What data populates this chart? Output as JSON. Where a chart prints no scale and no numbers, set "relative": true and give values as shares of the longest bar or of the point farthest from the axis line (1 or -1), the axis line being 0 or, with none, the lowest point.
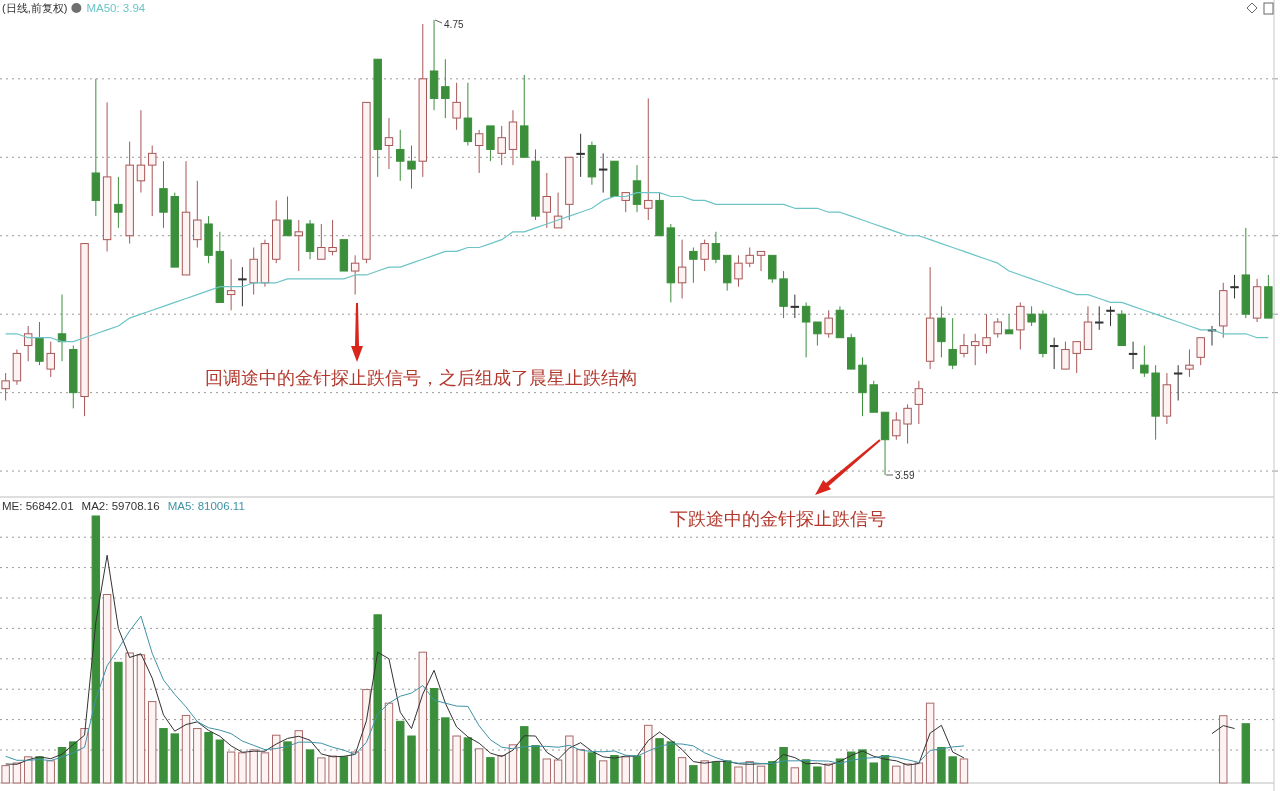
{
  "chart_data": [
    {
      "type": "candlestick",
      "categories": [
        null,
        null,
        null,
        null,
        null,
        null,
        null,
        null,
        null,
        null,
        null,
        null,
        null,
        null,
        null,
        null,
        null,
        null,
        null,
        null,
        null,
        null,
        null,
        null,
        null,
        null,
        null,
        null,
        null,
        null,
        null,
        null,
        null,
        null,
        null,
        null,
        null,
        null,
        null,
        null,
        null,
        null,
        null,
        null,
        null,
        null,
        null,
        null,
        null,
        null,
        null,
        null,
        null,
        null,
        null,
        null,
        null,
        null,
        null,
        null,
        null,
        null,
        null,
        null,
        null,
        null,
        null,
        null,
        null,
        null,
        null,
        null,
        null,
        null,
        null,
        null,
        null,
        null,
        null,
        null,
        null,
        null,
        null,
        null,
        null,
        null,
        null,
        null,
        null,
        null,
        null,
        null,
        null,
        null,
        null,
        null,
        null,
        null,
        null,
        null,
        null,
        null,
        null,
        null,
        null,
        null,
        null,
        null,
        null,
        null,
        null,
        null,
        null
      ],
      "ohlc": [
        [
          3.81,
          3.85,
          3.78,
          3.83
        ],
        [
          3.83,
          3.91,
          3.82,
          3.9
        ],
        [
          3.92,
          3.97,
          3.88,
          3.95
        ],
        [
          3.94,
          3.98,
          3.87,
          3.88
        ],
        [
          3.86,
          3.93,
          3.84,
          3.9
        ],
        [
          3.95,
          4.05,
          3.88,
          3.93
        ],
        [
          3.91,
          3.92,
          3.76,
          3.8
        ],
        [
          3.79,
          4.18,
          3.74,
          4.18
        ],
        [
          4.36,
          4.6,
          4.25,
          4.29
        ],
        [
          4.19,
          4.54,
          4.16,
          4.35
        ],
        [
          4.28,
          4.35,
          4.22,
          4.26
        ],
        [
          4.2,
          4.44,
          4.18,
          4.38
        ],
        [
          4.34,
          4.52,
          4.31,
          4.38
        ],
        [
          4.38,
          4.43,
          4.25,
          4.41
        ],
        [
          4.32,
          4.39,
          4.22,
          4.26
        ],
        [
          4.3,
          4.31,
          4.12,
          4.12
        ],
        [
          4.1,
          4.39,
          4.1,
          4.26
        ],
        [
          4.19,
          4.34,
          4.17,
          4.24
        ],
        [
          4.23,
          4.25,
          4.13,
          4.15
        ],
        [
          4.16,
          4.21,
          4.03,
          4.03
        ],
        [
          4.05,
          4.14,
          4.01,
          4.06
        ],
        [
          4.09,
          4.12,
          4.02,
          4.09
        ],
        [
          4.08,
          4.17,
          4.05,
          4.14
        ],
        [
          4.08,
          4.19,
          4.07,
          4.18
        ],
        [
          4.14,
          4.29,
          4.13,
          4.24
        ],
        [
          4.24,
          4.3,
          4.2,
          4.2
        ],
        [
          4.2,
          4.24,
          4.11,
          4.21
        ],
        [
          4.23,
          4.24,
          4.14,
          4.16
        ],
        [
          4.14,
          4.23,
          4.14,
          4.17
        ],
        [
          4.16,
          4.24,
          4.15,
          4.17
        ],
        [
          4.19,
          4.19,
          4.11,
          4.11
        ],
        [
          4.11,
          4.15,
          4.05,
          4.13
        ],
        [
          4.14,
          4.54,
          4.13,
          4.54
        ],
        [
          4.65,
          4.65,
          4.35,
          4.42
        ],
        [
          4.43,
          4.5,
          4.37,
          4.45
        ],
        [
          4.42,
          4.47,
          4.34,
          4.39
        ],
        [
          4.39,
          4.43,
          4.32,
          4.37
        ],
        [
          4.39,
          4.74,
          4.35,
          4.6
        ],
        [
          4.62,
          4.75,
          4.52,
          4.55
        ],
        [
          4.58,
          4.65,
          4.5,
          4.55
        ],
        [
          4.5,
          4.59,
          4.47,
          4.54
        ],
        [
          4.5,
          4.59,
          4.43,
          4.44
        ],
        [
          4.43,
          4.47,
          4.36,
          4.46
        ],
        [
          4.48,
          4.48,
          4.39,
          4.42
        ],
        [
          4.41,
          4.48,
          4.38,
          4.45
        ],
        [
          4.42,
          4.52,
          4.38,
          4.49
        ],
        [
          4.48,
          4.61,
          4.4,
          4.4
        ],
        [
          4.39,
          4.42,
          4.24,
          4.25
        ],
        [
          4.26,
          4.36,
          4.22,
          4.3
        ],
        [
          4.22,
          4.31,
          4.22,
          4.25
        ],
        [
          4.28,
          4.4,
          4.24,
          4.4
        ],
        [
          4.41,
          4.46,
          4.35,
          4.41
        ],
        [
          4.43,
          4.44,
          4.33,
          4.35
        ],
        [
          4.37,
          4.41,
          4.31,
          4.37
        ],
        [
          4.39,
          4.39,
          4.3,
          4.3
        ],
        [
          4.29,
          4.31,
          4.26,
          4.31
        ],
        [
          4.34,
          4.38,
          4.26,
          4.28
        ],
        [
          4.27,
          4.55,
          4.24,
          4.29
        ],
        [
          4.29,
          4.31,
          4.2,
          4.2
        ],
        [
          4.22,
          4.23,
          4.03,
          4.08
        ],
        [
          4.08,
          4.19,
          4.04,
          4.12
        ],
        [
          4.16,
          4.17,
          4.08,
          4.14
        ],
        [
          4.14,
          4.19,
          4.11,
          4.18
        ],
        [
          4.18,
          4.21,
          4.13,
          4.14
        ],
        [
          4.15,
          4.15,
          4.06,
          4.08
        ],
        [
          4.09,
          4.15,
          4.07,
          4.13
        ],
        [
          4.13,
          4.17,
          4.12,
          4.15
        ],
        [
          4.15,
          4.16,
          4.11,
          4.16
        ],
        [
          4.15,
          4.15,
          4.08,
          4.09
        ],
        [
          4.09,
          4.11,
          3.99,
          4.02
        ],
        [
          4.02,
          4.05,
          3.99,
          4.02
        ],
        [
          4.02,
          4.03,
          3.89,
          3.98
        ],
        [
          3.98,
          3.98,
          3.92,
          3.95
        ],
        [
          3.95,
          4.01,
          3.94,
          3.99
        ],
        [
          4.01,
          4.02,
          3.94,
          3.94
        ],
        [
          3.94,
          3.95,
          3.86,
          3.86
        ],
        [
          3.87,
          3.89,
          3.74,
          3.8
        ],
        [
          3.82,
          3.83,
          3.75,
          3.75
        ],
        [
          3.75,
          3.75,
          3.59,
          3.68
        ],
        [
          3.69,
          3.75,
          3.68,
          3.73
        ],
        [
          3.72,
          3.77,
          3.67,
          3.76
        ],
        [
          3.77,
          3.83,
          3.72,
          3.81
        ],
        [
          3.88,
          4.12,
          3.86,
          3.99
        ],
        [
          3.99,
          4.02,
          3.89,
          3.93
        ],
        [
          3.91,
          3.99,
          3.86,
          3.87
        ],
        [
          3.9,
          3.95,
          3.89,
          3.92
        ],
        [
          3.92,
          3.95,
          3.87,
          3.93
        ],
        [
          3.92,
          4.0,
          3.9,
          3.94
        ],
        [
          3.95,
          3.99,
          3.94,
          3.98
        ],
        [
          3.96,
          4.0,
          3.95,
          3.95
        ],
        [
          3.96,
          4.03,
          3.91,
          4.02
        ],
        [
          4.0,
          4.02,
          3.97,
          3.98
        ],
        [
          4.0,
          4.01,
          3.89,
          3.9
        ],
        [
          3.92,
          3.94,
          3.86,
          3.92
        ],
        [
          3.86,
          3.93,
          3.86,
          3.91
        ],
        [
          3.9,
          3.93,
          3.85,
          3.93
        ],
        [
          3.91,
          4.02,
          3.91,
          3.98
        ],
        [
          3.98,
          4.02,
          3.96,
          3.98
        ],
        [
          4.01,
          4.02,
          3.97,
          4.01
        ],
        [
          4.0,
          4.01,
          3.92,
          3.92
        ],
        [
          3.9,
          3.93,
          3.86,
          3.9
        ],
        [
          3.87,
          3.92,
          3.84,
          3.85
        ],
        [
          3.85,
          3.87,
          3.68,
          3.74
        ],
        [
          3.74,
          3.85,
          3.72,
          3.82
        ],
        [
          3.85,
          3.87,
          3.78,
          3.85
        ],
        [
          3.86,
          3.91,
          3.84,
          3.87
        ],
        [
          3.89,
          3.94,
          3.87,
          3.94
        ],
        [
          3.96,
          3.97,
          3.92,
          3.96
        ],
        [
          3.97,
          4.08,
          3.94,
          4.06
        ],
        [
          4.07,
          4.1,
          4.04,
          4.07
        ],
        [
          4.1,
          4.22,
          3.99,
          4.0
        ],
        [
          3.99,
          4.09,
          3.98,
          4.07
        ],
        [
          4.07,
          4.1,
          3.99,
          3.99
        ]
      ],
      "colors": [
        "#fdf3f3",
        "#fdf3f3",
        "#fdf3f3",
        "#3b8f3b",
        "#fdf3f3",
        "#3b8f3b",
        "#3b8f3b",
        "#fdf3f3",
        "#3b8f3b",
        "#fdf3f3",
        "#3b8f3b",
        "#fdf3f3",
        "#fdf3f3",
        "#fdf3f3",
        "#3b8f3b",
        "#3b8f3b",
        "#fdf3f3",
        "#fdf3f3",
        "#3b8f3b",
        "#3b8f3b",
        "#fdf3f3",
        "#333333",
        "#fdf3f3",
        "#fdf3f3",
        "#fdf3f3",
        "#3b8f3b",
        "#fdf3f3",
        "#3b8f3b",
        "#fdf3f3",
        "#fdf3f3",
        "#3b8f3b",
        "#fdf3f3",
        "#fdf3f3",
        "#3b8f3b",
        "#fdf3f3",
        "#3b8f3b",
        "#3b8f3b",
        "#fdf3f3",
        "#3b8f3b",
        "#3b8f3b",
        "#fdf3f3",
        "#3b8f3b",
        "#fdf3f3",
        "#3b8f3b",
        "#fdf3f3",
        "#fdf3f3",
        "#3b8f3b",
        "#3b8f3b",
        "#fdf3f3",
        "#fdf3f3",
        "#fdf3f3",
        "#333333",
        "#3b8f3b",
        "#333333",
        "#3b8f3b",
        "#fdf3f3",
        "#3b8f3b",
        "#fdf3f3",
        "#3b8f3b",
        "#3b8f3b",
        "#fdf3f3",
        "#3b8f3b",
        "#fdf3f3",
        "#3b8f3b",
        "#3b8f3b",
        "#fdf3f3",
        "#fdf3f3",
        "#fdf3f3",
        "#3b8f3b",
        "#3b8f3b",
        "#333333",
        "#3b8f3b",
        "#3b8f3b",
        "#fdf3f3",
        "#3b8f3b",
        "#3b8f3b",
        "#3b8f3b",
        "#3b8f3b",
        "#3b8f3b",
        "#fdf3f3",
        "#fdf3f3",
        "#fdf3f3",
        "#fdf3f3",
        "#3b8f3b",
        "#3b8f3b",
        "#fdf3f3",
        "#fdf3f3",
        "#fdf3f3",
        "#fdf3f3",
        "#3b8f3b",
        "#fdf3f3",
        "#3b8f3b",
        "#3b8f3b",
        "#333333",
        "#fdf3f3",
        "#fdf3f3",
        "#fdf3f3",
        "#333333",
        "#333333",
        "#3b8f3b",
        "#333333",
        "#3b8f3b",
        "#3b8f3b",
        "#fdf3f3",
        "#333333",
        "#fdf3f3",
        "#fdf3f3",
        "#333333",
        "#fdf3f3",
        "#333333",
        "#3b8f3b",
        "#fdf3f3",
        "#3b8f3b"
      ],
      "series": [
        {
          "type": "line",
          "name": "MA50: 3.94",
          "color": "#6cc4c6",
          "values": [
            3.95,
            3.95,
            3.94,
            3.94,
            3.94,
            3.93,
            3.93,
            3.94,
            3.95,
            3.96,
            3.97,
            3.99,
            4.0,
            4.01,
            4.02,
            4.03,
            4.04,
            4.05,
            4.06,
            4.07,
            4.07,
            4.07,
            4.08,
            4.08,
            4.08,
            4.09,
            4.09,
            4.09,
            4.09,
            4.09,
            4.09,
            4.1,
            4.1,
            4.11,
            4.12,
            4.12,
            4.13,
            4.14,
            4.15,
            4.16,
            4.16,
            4.17,
            4.17,
            4.18,
            4.19,
            4.21,
            4.21,
            4.22,
            4.23,
            4.24,
            4.25,
            4.26,
            4.27,
            4.29,
            4.3,
            4.3,
            4.31,
            4.31,
            4.31,
            4.3,
            4.3,
            4.29,
            4.29,
            4.28,
            4.28,
            4.28,
            4.28,
            4.28,
            4.28,
            4.28,
            4.27,
            4.27,
            4.27,
            4.26,
            4.26,
            4.25,
            4.24,
            4.23,
            4.22,
            4.21,
            4.2,
            4.2,
            4.19,
            4.18,
            4.17,
            4.16,
            4.15,
            4.14,
            4.13,
            4.11,
            4.1,
            4.09,
            4.08,
            4.07,
            4.06,
            4.05,
            4.05,
            4.04,
            4.03,
            4.03,
            4.02,
            4.01,
            4.0,
            3.99,
            3.98,
            3.97,
            3.96,
            3.96,
            3.95,
            3.95,
            3.95,
            3.94,
            3.94
          ]
        }
      ],
      "yticks": [
        {
          "value": 3.6,
          "label": null
        },
        {
          "value": 3.8,
          "label": null
        },
        {
          "value": 4.0,
          "label": null
        },
        {
          "value": 4.2,
          "label": null
        },
        {
          "value": 4.4,
          "label": null
        },
        {
          "value": 4.6,
          "label": null
        }
      ],
      "grid": "y",
      "legend": "top left",
      "annotations": [
        "(日线,前复权)",
        "回调途中的金针探止跌信号，之后组成了晨星止跌结构",
        "下跌途中的金针探止跌信号",
        "4.75",
        "3.59"
      ]
    },
    {
      "type": "bar",
      "relative": true,
      "categories": [
        null,
        null,
        null,
        null,
        null,
        null,
        null,
        null,
        null,
        null,
        null,
        null,
        null,
        null,
        null,
        null,
        null,
        null,
        null,
        null,
        null,
        null,
        null,
        null,
        null,
        null,
        null,
        null,
        null,
        null,
        null,
        null,
        null,
        null,
        null,
        null,
        null,
        null,
        null,
        null,
        null,
        null,
        null,
        null,
        null,
        null,
        null,
        null,
        null,
        null,
        null,
        null,
        null,
        null,
        null,
        null,
        null,
        null,
        null,
        null,
        null,
        null,
        null,
        null,
        null,
        null,
        null,
        null,
        null,
        null,
        null,
        null,
        null,
        null,
        null,
        null,
        null,
        null,
        null,
        null,
        null,
        null,
        null,
        null,
        null,
        null,
        null,
        null,
        null,
        null,
        null,
        null,
        null,
        null,
        null,
        null,
        null,
        null,
        null,
        null,
        null,
        null,
        null,
        null,
        null,
        null,
        null,
        null,
        null,
        null,
        null,
        null,
        null
      ],
      "series": [
        {
          "type": "bar",
          "values": [
            0.065,
            0.075,
            0.098,
            0.098,
            0.083,
            0.133,
            0.154,
            0.204,
            1,
            0.706,
            0.452,
            0.487,
            0.48,
            0.305,
            0.204,
            0.184,
            0.253,
            0.204,
            0.189,
            0.161,
            0.116,
            0.113,
            0.124,
            0.113,
            0.179,
            0.154,
            0.196,
            0.124,
            0.094,
            0.101,
            0.098,
            0.116,
            0.35,
            0.63,
            0.299,
            0.231,
            0.176,
            0.49,
            0.354,
            0.244,
            0.176,
            0.169,
            0.128,
            0.095,
            0.103,
            0.143,
            0.211,
            0.14,
            0.09,
            0.086,
            0.176,
            0.125,
            0.113,
            0.083,
            0.103,
            0.098,
            0.101,
            0.216,
            0.166,
            0.154,
            0.095,
            0.065,
            0.083,
            0.078,
            0.083,
            0.06,
            0.08,
            0.063,
            0.08,
            0.133,
            0.057,
            0.087,
            0.06,
            0.071,
            0.09,
            0.116,
            0.124,
            0.075,
            0.103,
            0.063,
            0.071,
            0.075,
            0.299,
            0.133,
            0.098,
            0.09,
            null,
            null,
            null,
            null,
            null,
            null,
            null,
            null,
            null,
            null,
            null,
            null,
            null,
            null,
            null,
            null,
            null,
            null,
            null,
            null,
            null,
            null,
            0.252,
            null,
            0.222,
            null,
            null
          ],
          "colors": [
            "#fdf3f3",
            "#fdf3f3",
            "#fdf3f3",
            "#3b8f3b",
            "#fdf3f3",
            "#3b8f3b",
            "#3b8f3b",
            "#fdf3f3",
            "#3b8f3b",
            "#fdf3f3",
            "#3b8f3b",
            "#fdf3f3",
            "#fdf3f3",
            "#fdf3f3",
            "#3b8f3b",
            "#3b8f3b",
            "#fdf3f3",
            "#fdf3f3",
            "#3b8f3b",
            "#3b8f3b",
            "#fdf3f3",
            "#fdf3f3",
            "#fdf3f3",
            "#fdf3f3",
            "#fdf3f3",
            "#3b8f3b",
            "#fdf3f3",
            "#3b8f3b",
            "#fdf3f3",
            "#fdf3f3",
            "#3b8f3b",
            "#fdf3f3",
            "#fdf3f3",
            "#3b8f3b",
            "#fdf3f3",
            "#3b8f3b",
            "#3b8f3b",
            "#fdf3f3",
            "#3b8f3b",
            "#3b8f3b",
            "#fdf3f3",
            "#3b8f3b",
            "#fdf3f3",
            "#3b8f3b",
            "#fdf3f3",
            "#fdf3f3",
            "#3b8f3b",
            "#3b8f3b",
            "#fdf3f3",
            "#fdf3f3",
            "#fdf3f3",
            "#fdf3f3",
            "#3b8f3b",
            "#fdf3f3",
            "#3b8f3b",
            "#fdf3f3",
            "#3b8f3b",
            "#fdf3f3",
            "#3b8f3b",
            "#3b8f3b",
            "#fdf3f3",
            "#3b8f3b",
            "#fdf3f3",
            "#3b8f3b",
            "#3b8f3b",
            "#fdf3f3",
            "#fdf3f3",
            "#fdf3f3",
            "#3b8f3b",
            "#3b8f3b",
            "#fdf3f3",
            "#3b8f3b",
            "#3b8f3b",
            "#fdf3f3",
            "#3b8f3b",
            "#3b8f3b",
            "#3b8f3b",
            "#3b8f3b",
            "#3b8f3b",
            "#fdf3f3",
            "#fdf3f3",
            "#fdf3f3",
            "#fdf3f3",
            "#3b8f3b",
            "#3b8f3b",
            "#fdf3f3",
            "#fdf3f3",
            "#fdf3f3",
            "#fdf3f3",
            "#3b8f3b",
            "#fdf3f3",
            "#3b8f3b",
            "#3b8f3b",
            "#fdf3f3",
            "#fdf3f3",
            "#fdf3f3",
            "#fdf3f3",
            "#fdf3f3",
            "#fdf3f3",
            "#3b8f3b",
            "#fdf3f3",
            "#3b8f3b",
            "#3b8f3b",
            "#fdf3f3",
            "#fdf3f3",
            "#fdf3f3",
            "#fdf3f3",
            "#fdf3f3",
            "#fdf3f3",
            "#fdf3f3",
            "#3b8f3b",
            "#fdf3f3",
            "#3b8f3b"
          ]
        },
        {
          "type": "line",
          "name": "MA2: 59708.16",
          "color": "#333333",
          "values": [
            0.071,
            0.07,
            0.087,
            0.098,
            0.091,
            0.108,
            0.144,
            0.179,
            0.602,
            0.853,
            0.579,
            0.47,
            0.484,
            0.393,
            0.255,
            0.194,
            0.219,
            0.229,
            0.197,
            0.175,
            0.139,
            0.115,
            0.119,
            0.119,
            0.146,
            0.167,
            0.175,
            0.16,
            0.109,
            0.098,
            0.1,
            0.107,
            0.233,
            0.49,
            0.465,
            0.265,
            0.204,
            0.333,
            0.422,
            0.299,
            0.21,
            0.173,
            0.149,
            0.112,
            0.099,
            0.123,
            0.177,
            0.176,
            0.115,
            0.088,
            0.131,
            0.151,
            0.119,
            0.098,
            0.093,
            0.101,
            0.1,
            0.159,
            0.191,
            0.16,
            0.125,
            0.08,
            0.074,
            0.081,
            0.081,
            0.072,
            0.07,
            0.072,
            0.072,
            0.107,
            0.095,
            0.072,
            0.074,
            0.066,
            0.081,
            0.103,
            0.12,
            0.1,
            0.089,
            0.083,
            0.067,
            0.073,
            0.187,
            0.216,
            0.116,
            0.094,
            null,
            null,
            null,
            null,
            null,
            null,
            null,
            null,
            null,
            null,
            null,
            null,
            null,
            null,
            null,
            null,
            null,
            null,
            null,
            null,
            null,
            0.185,
            0.215,
            0.204,
            null,
            null,
            null
          ]
        },
        {
          "type": "line",
          "name": "MA5: 81006.11",
          "color": "#3f93a8",
          "values": [
            0.1,
            0.085,
            0.085,
            0.088,
            0.084,
            0.097,
            0.113,
            0.134,
            0.315,
            0.439,
            0.503,
            0.57,
            0.625,
            0.486,
            0.386,
            0.332,
            0.285,
            0.23,
            0.207,
            0.198,
            0.185,
            0.157,
            0.141,
            0.125,
            0.129,
            0.137,
            0.153,
            0.153,
            0.149,
            0.134,
            0.123,
            0.107,
            0.152,
            0.259,
            0.299,
            0.325,
            0.337,
            0.365,
            0.31,
            0.299,
            0.288,
            0.287,
            0.214,
            0.162,
            0.134,
            0.128,
            0.136,
            0.138,
            0.137,
            0.134,
            0.141,
            0.123,
            0.118,
            0.117,
            0.12,
            0.104,
            0.1,
            0.12,
            0.137,
            0.147,
            0.146,
            0.139,
            0.113,
            0.095,
            0.081,
            0.074,
            0.077,
            0.073,
            0.073,
            0.083,
            0.083,
            0.084,
            0.083,
            0.082,
            0.073,
            0.085,
            0.092,
            0.095,
            0.102,
            0.096,
            0.087,
            0.077,
            0.122,
            0.128,
            0.135,
            0.139,
            null,
            null,
            null,
            null,
            null,
            null,
            null,
            null,
            null,
            null,
            null,
            null,
            null,
            null,
            null,
            null,
            null,
            null,
            null,
            null,
            null,
            null,
            null,
            null,
            null,
            null,
            null
          ]
        }
      ],
      "grid": true,
      "annotations": [
        "ME: 56842.01"
      ]
    }
  ]
}
